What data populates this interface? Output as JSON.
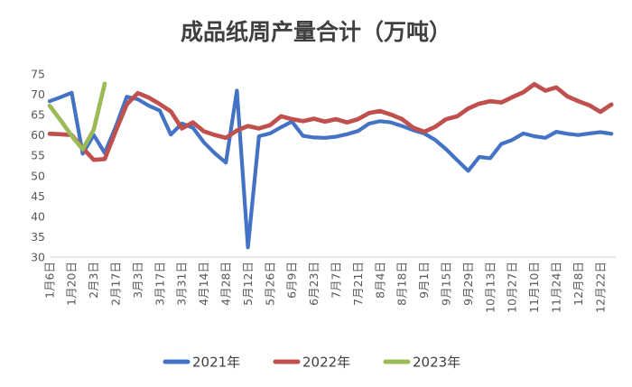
{
  "title": "成品纸周产量合计（万吨）",
  "chart_data": {
    "type": "line",
    "title": "成品纸周产量合计（万吨）",
    "xlabel": "",
    "ylabel": "",
    "ylim": [
      30,
      75
    ],
    "y_ticks": [
      30,
      35,
      40,
      45,
      50,
      55,
      60,
      65,
      70,
      75
    ],
    "grid": false,
    "legend_position": "bottom",
    "x_tick_labels": [
      "1月6日",
      "1月20日",
      "2月3日",
      "2月17日",
      "3月3日",
      "3月17日",
      "3月31日",
      "4月14日",
      "4月28日",
      "5月12日",
      "5月26日",
      "6月9日",
      "6月23日",
      "7月7日",
      "7月21日",
      "8月4日",
      "8月18日",
      "9月1日",
      "9月15日",
      "9月29日",
      "10月13日",
      "10月27日",
      "11月10日",
      "11月24日",
      "12月8日",
      "12月22日"
    ],
    "weeks_per_tick": 2,
    "series": [
      {
        "name": "2021年",
        "color": "#4472C4",
        "values": [
          68.3,
          69.3,
          70.4,
          55.4,
          60.0,
          55.6,
          62.0,
          69.4,
          68.8,
          67.2,
          66.0,
          60.1,
          62.8,
          61.8,
          58.2,
          55.5,
          53.2,
          70.9,
          32.4,
          59.7,
          60.4,
          61.9,
          63.3,
          59.8,
          59.4,
          59.3,
          59.6,
          60.2,
          61.0,
          62.8,
          63.4,
          63.1,
          62.2,
          61.2,
          60.4,
          58.8,
          56.5,
          53.8,
          51.2,
          54.6,
          54.3,
          57.8,
          58.8,
          60.4,
          59.7,
          59.3,
          60.8,
          60.3,
          60.0,
          60.4,
          60.7,
          60.3
        ]
      },
      {
        "name": "2022年",
        "color": "#C0504D",
        "values": [
          60.3,
          60.2,
          60.0,
          56.8,
          53.9,
          54.1,
          61.0,
          67.5,
          70.3,
          69.2,
          67.6,
          65.8,
          61.6,
          63.1,
          60.9,
          60.0,
          59.3,
          61.1,
          62.2,
          61.6,
          62.4,
          64.6,
          63.9,
          63.4,
          64.0,
          63.3,
          63.9,
          63.1,
          63.9,
          65.4,
          65.9,
          65.0,
          63.9,
          61.8,
          60.8,
          62.0,
          63.9,
          64.6,
          66.5,
          67.7,
          68.3,
          68.0,
          69.3,
          70.5,
          72.5,
          70.9,
          71.7,
          69.5,
          68.3,
          67.3,
          65.7,
          67.5
        ]
      },
      {
        "name": "2023年",
        "color": "#9BBB59",
        "values": [
          67.2,
          63.6,
          59.8,
          56.5,
          61.3,
          72.6
        ]
      }
    ]
  },
  "legend": {
    "items": [
      {
        "label": "2021年",
        "color": "#4472C4"
      },
      {
        "label": "2022年",
        "color": "#C0504D"
      },
      {
        "label": "2023年",
        "color": "#9BBB59"
      }
    ]
  }
}
